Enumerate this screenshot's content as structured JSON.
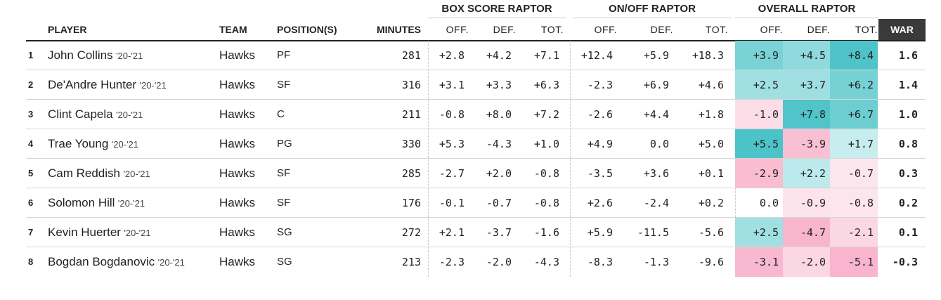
{
  "chart_data": {
    "type": "table",
    "group_headers": [
      "BOX SCORE RAPTOR",
      "ON/OFF RAPTOR",
      "OVERALL RAPTOR"
    ],
    "columns": [
      "PLAYER",
      "TEAM",
      "POSITION(S)",
      "MINUTES",
      "OFF.",
      "DEF.",
      "TOT.",
      "OFF.",
      "DEF.",
      "TOT.",
      "OFF.",
      "DEF.",
      "TOT.",
      "WAR"
    ],
    "rows": [
      {
        "rank": "1",
        "player": "John Collins",
        "season": "'20-'21",
        "team": "Hawks",
        "position": "PF",
        "minutes": "281",
        "box": [
          "+2.8",
          "+4.2",
          "+7.1"
        ],
        "onoff": [
          "+12.4",
          "+5.9",
          "+18.3"
        ],
        "overall": [
          "+3.9",
          "+4.5",
          "+8.4"
        ],
        "war": "1.6"
      },
      {
        "rank": "2",
        "player": "De'Andre Hunter",
        "season": "'20-'21",
        "team": "Hawks",
        "position": "SF",
        "minutes": "316",
        "box": [
          "+3.1",
          "+3.3",
          "+6.3"
        ],
        "onoff": [
          "-2.3",
          "+6.9",
          "+4.6"
        ],
        "overall": [
          "+2.5",
          "+3.7",
          "+6.2"
        ],
        "war": "1.4"
      },
      {
        "rank": "3",
        "player": "Clint Capela",
        "season": "'20-'21",
        "team": "Hawks",
        "position": "C",
        "minutes": "211",
        "box": [
          "-0.8",
          "+8.0",
          "+7.2"
        ],
        "onoff": [
          "-2.6",
          "+4.4",
          "+1.8"
        ],
        "overall": [
          "-1.0",
          "+7.8",
          "+6.7"
        ],
        "war": "1.0"
      },
      {
        "rank": "4",
        "player": "Trae Young",
        "season": "'20-'21",
        "team": "Hawks",
        "position": "PG",
        "minutes": "330",
        "box": [
          "+5.3",
          "-4.3",
          "+1.0"
        ],
        "onoff": [
          "+4.9",
          "0.0",
          "+5.0"
        ],
        "overall": [
          "+5.5",
          "-3.9",
          "+1.7"
        ],
        "war": "0.8"
      },
      {
        "rank": "5",
        "player": "Cam Reddish",
        "season": "'20-'21",
        "team": "Hawks",
        "position": "SF",
        "minutes": "285",
        "box": [
          "-2.7",
          "+2.0",
          "-0.8"
        ],
        "onoff": [
          "-3.5",
          "+3.6",
          "+0.1"
        ],
        "overall": [
          "-2.9",
          "+2.2",
          "-0.7"
        ],
        "war": "0.3"
      },
      {
        "rank": "6",
        "player": "Solomon Hill",
        "season": "'20-'21",
        "team": "Hawks",
        "position": "SF",
        "minutes": "176",
        "box": [
          "-0.1",
          "-0.7",
          "-0.8"
        ],
        "onoff": [
          "+2.6",
          "-2.4",
          "+0.2"
        ],
        "overall": [
          "0.0",
          "-0.9",
          "-0.8"
        ],
        "war": "0.2"
      },
      {
        "rank": "7",
        "player": "Kevin Huerter",
        "season": "'20-'21",
        "team": "Hawks",
        "position": "SG",
        "minutes": "272",
        "box": [
          "+2.1",
          "-3.7",
          "-1.6"
        ],
        "onoff": [
          "+5.9",
          "-11.5",
          "-5.6"
        ],
        "overall": [
          "+2.5",
          "-4.7",
          "-2.1"
        ],
        "war": "0.1"
      },
      {
        "rank": "8",
        "player": "Bogdan Bogdanovic",
        "season": "'20-'21",
        "team": "Hawks",
        "position": "SG",
        "minutes": "213",
        "box": [
          "-2.3",
          "-2.0",
          "-4.3"
        ],
        "onoff": [
          "-8.3",
          "-1.3",
          "-9.6"
        ],
        "overall": [
          "-3.1",
          "-2.0",
          "-5.1"
        ],
        "war": "-0.3"
      }
    ],
    "colors": {
      "positive_strong": "#4cc3c8",
      "positive_light": "#e6f7f8",
      "negative_strong": "#f58fb3",
      "negative_light": "#fdeef3",
      "war_header_bg": "#3a3a3a"
    }
  }
}
